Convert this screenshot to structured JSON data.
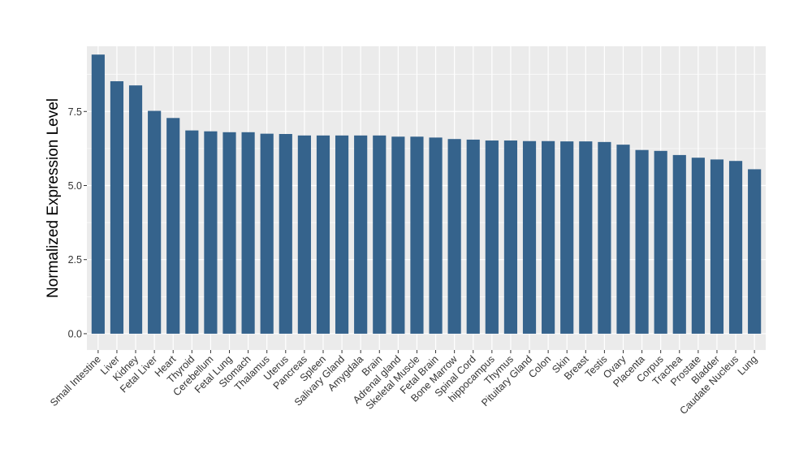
{
  "chart_data": {
    "type": "bar",
    "title": "",
    "xlabel": "",
    "ylabel": "Normalized Expression Level",
    "ylim": [
      -0.55,
      9.7
    ],
    "yticks": [
      0.0,
      2.5,
      5.0,
      7.5
    ],
    "ytick_labels": [
      "0.0",
      "2.5",
      "5.0",
      "7.5"
    ],
    "grid": true,
    "legend": "none",
    "bar_color": "#35638C",
    "panel_color": "#EBEBEB",
    "categories": [
      "Small Intestine",
      "Liver",
      "Kidney",
      "Fetal Liver",
      "Heart",
      "Thyroid",
      "Cerebellum",
      "Fetal Lung",
      "Stomach",
      "Thalamus",
      "Uterus",
      "Pancreas",
      "Spleen",
      "Salivary Gland",
      "Amygdala",
      "Brain",
      "Adrenal gland",
      "Skeletal Muscle",
      "Fetal Brain",
      "Bone Marrow",
      "Spinal Cord",
      "hippocampus",
      "Thymus",
      "Pituitary Gland",
      "Colon",
      "Skin",
      "Breast",
      "Testis",
      "Ovary",
      "Placenta",
      "Corpus",
      "Trachea",
      "Prostate",
      "Bladder",
      "Caudate Nucleus",
      "Lung"
    ],
    "values": [
      9.42,
      8.52,
      8.38,
      7.52,
      7.28,
      6.86,
      6.83,
      6.8,
      6.8,
      6.75,
      6.74,
      6.69,
      6.69,
      6.69,
      6.69,
      6.69,
      6.65,
      6.65,
      6.62,
      6.57,
      6.55,
      6.52,
      6.52,
      6.5,
      6.5,
      6.49,
      6.49,
      6.47,
      6.38,
      6.2,
      6.17,
      6.03,
      5.94,
      5.88,
      5.83,
      5.55
    ]
  }
}
